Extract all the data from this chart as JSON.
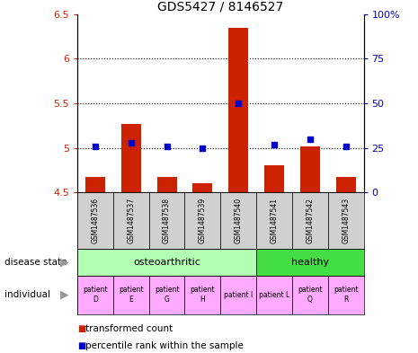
{
  "title": "GDS5427 / 8146527",
  "samples": [
    "GSM1487536",
    "GSM1487537",
    "GSM1487538",
    "GSM1487539",
    "GSM1487540",
    "GSM1487541",
    "GSM1487542",
    "GSM1487543"
  ],
  "red_values": [
    4.67,
    5.27,
    4.67,
    4.6,
    6.35,
    4.8,
    5.02,
    4.67
  ],
  "blue_values": [
    26,
    28,
    26,
    25,
    50,
    27,
    30,
    26
  ],
  "ylim_left": [
    4.5,
    6.5
  ],
  "ylim_right": [
    0,
    100
  ],
  "yticks_left": [
    4.5,
    5.0,
    5.5,
    6.0,
    6.5
  ],
  "yticks_right": [
    0,
    25,
    50,
    75,
    100
  ],
  "ytick_labels_left": [
    "4.5",
    "5",
    "5.5",
    "6",
    "6.5"
  ],
  "ytick_labels_right": [
    "0",
    "25",
    "50",
    "75",
    "100%"
  ],
  "hlines": [
    5.0,
    5.5,
    6.0
  ],
  "disease_groups": [
    {
      "label": "osteoarthritic",
      "start": 0,
      "end": 5,
      "color": "#b3ffb3"
    },
    {
      "label": "healthy",
      "start": 5,
      "end": 8,
      "color": "#44dd44"
    }
  ],
  "individuals": [
    {
      "label": "patient\nD",
      "col": 0,
      "color": "#ffaaff"
    },
    {
      "label": "patient\nE",
      "col": 1,
      "color": "#ffaaff"
    },
    {
      "label": "patient\nG",
      "col": 2,
      "color": "#ffaaff"
    },
    {
      "label": "patient\nH",
      "col": 3,
      "color": "#ffaaff"
    },
    {
      "label": "patient I",
      "col": 4,
      "color": "#ffaaff"
    },
    {
      "label": "patient L",
      "col": 5,
      "color": "#ffaaff"
    },
    {
      "label": "patient\nQ",
      "col": 6,
      "color": "#ffaaff"
    },
    {
      "label": "patient\nR",
      "col": 7,
      "color": "#ffaaff"
    }
  ],
  "bar_color": "#cc2200",
  "dot_color": "#0000cc",
  "bar_width": 0.55,
  "dot_size": 25,
  "left_axis_color": "#cc2200",
  "right_axis_color": "#0000cc",
  "legend_items": [
    {
      "color": "#cc2200",
      "label": "transformed count"
    },
    {
      "color": "#0000cc",
      "label": "percentile rank within the sample"
    }
  ],
  "sample_box_color": "#d0d0d0",
  "arrow_color": "#999999",
  "label_disease_state": "disease state",
  "label_individual": "individual"
}
